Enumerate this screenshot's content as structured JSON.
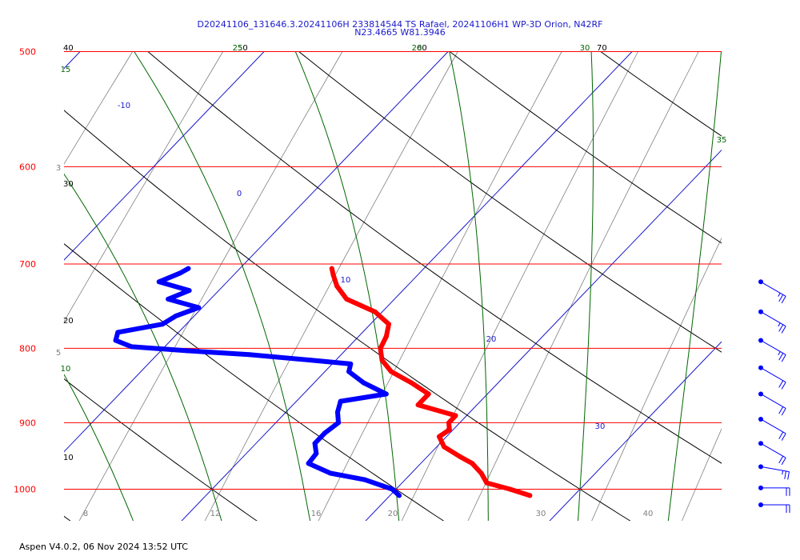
{
  "header": {
    "title_line1": "D20241106_131646.3.20241106H 233814544 TS Rafael, 20241106H1 WP-3D Orion, N42RF",
    "title_line2": "N23.4665 W81.3946"
  },
  "footer": {
    "text": "Aspen V4.0.2, 06 Nov 2024  13:52 UTC"
  },
  "colors": {
    "isobar": "#ff0000",
    "temperature": "#ff0000",
    "dewpoint": "#0000ff",
    "isotherm": "#1a1acc",
    "dry_adiabat": "#000000",
    "moist_adiabat": "#006600",
    "mixing_ratio": "#808080",
    "wind_barb": "#0000ff"
  },
  "chart_data": {
    "type": "skew-t",
    "y_axis": {
      "label_values": [
        "500",
        "600",
        "700",
        "800",
        "900",
        "1000"
      ]
    },
    "x_axis": {
      "tick_labels": [
        "8",
        "12",
        "16",
        "20",
        "30",
        "40"
      ]
    },
    "isotherm_labels": [
      "-10",
      "0",
      "10",
      "20",
      "30"
    ],
    "dry_adiabat_labels": [
      "40",
      "30",
      "20",
      "10",
      "70",
      "50",
      "60"
    ],
    "moist_adiabat_labels": [
      "15",
      "10",
      "25",
      "20",
      "30",
      "35"
    ],
    "mixing_ratio_labels": [
      "3",
      "5"
    ],
    "temperature_profile": [
      {
        "p": 1010,
        "t": 27.6
      },
      {
        "p": 1000,
        "t": 26.2
      },
      {
        "p": 990,
        "t": 24.6
      },
      {
        "p": 975,
        "t": 23.8
      },
      {
        "p": 960,
        "t": 22.8
      },
      {
        "p": 950,
        "t": 21.8
      },
      {
        "p": 935,
        "t": 20.4
      },
      {
        "p": 920,
        "t": 19.6
      },
      {
        "p": 910,
        "t": 19.8
      },
      {
        "p": 900,
        "t": 19.4
      },
      {
        "p": 890,
        "t": 19.4
      },
      {
        "p": 875,
        "t": 16.8
      },
      {
        "p": 860,
        "t": 16.8
      },
      {
        "p": 845,
        "t": 15.3
      },
      {
        "p": 830,
        "t": 13.6
      },
      {
        "p": 815,
        "t": 12.5
      },
      {
        "p": 800,
        "t": 11.8
      },
      {
        "p": 785,
        "t": 11.5
      },
      {
        "p": 770,
        "t": 11.0
      },
      {
        "p": 755,
        "t": 9.6
      },
      {
        "p": 740,
        "t": 7.4
      },
      {
        "p": 725,
        "t": 6.2
      },
      {
        "p": 712,
        "t": 5.4
      },
      {
        "p": 705,
        "t": 5.0
      }
    ],
    "dewpoint_profile": [
      {
        "p": 1010,
        "td": 20.5
      },
      {
        "p": 1000,
        "td": 19.8
      },
      {
        "p": 985,
        "td": 17.8
      },
      {
        "p": 975,
        "td": 15.6
      },
      {
        "p": 960,
        "td": 13.9
      },
      {
        "p": 945,
        "td": 13.8
      },
      {
        "p": 930,
        "td": 13.2
      },
      {
        "p": 915,
        "td": 13.2
      },
      {
        "p": 900,
        "td": 13.4
      },
      {
        "p": 885,
        "td": 12.8
      },
      {
        "p": 870,
        "td": 12.4
      },
      {
        "p": 860,
        "td": 14.5
      },
      {
        "p": 845,
        "td": 12.7
      },
      {
        "p": 830,
        "td": 11.3
      },
      {
        "p": 820,
        "td": 11.0
      },
      {
        "p": 815,
        "td": 8.6
      },
      {
        "p": 808,
        "td": 5.0
      },
      {
        "p": 803,
        "td": 1.4
      },
      {
        "p": 798,
        "td": -1.8
      },
      {
        "p": 790,
        "td": -3.0
      },
      {
        "p": 780,
        "td": -3.3
      },
      {
        "p": 770,
        "td": -1.3
      },
      {
        "p": 760,
        "td": -1.0
      },
      {
        "p": 750,
        "td": -0.2
      },
      {
        "p": 740,
        "td": -2.3
      },
      {
        "p": 730,
        "td": -1.6
      },
      {
        "p": 720,
        "td": -3.7
      },
      {
        "p": 710,
        "td": -3.0
      },
      {
        "p": 705,
        "td": -2.8
      }
    ],
    "wind_barbs": [
      {
        "p": 720,
        "speed_kt": 25
      },
      {
        "p": 755,
        "speed_kt": 25
      },
      {
        "p": 790,
        "speed_kt": 25
      },
      {
        "p": 825,
        "speed_kt": 20
      },
      {
        "p": 860,
        "speed_kt": 20
      },
      {
        "p": 895,
        "speed_kt": 20
      },
      {
        "p": 930,
        "speed_kt": 20
      },
      {
        "p": 965,
        "speed_kt": 25
      },
      {
        "p": 998,
        "speed_kt": 20
      },
      {
        "p": 1025,
        "speed_kt": 20
      }
    ]
  }
}
